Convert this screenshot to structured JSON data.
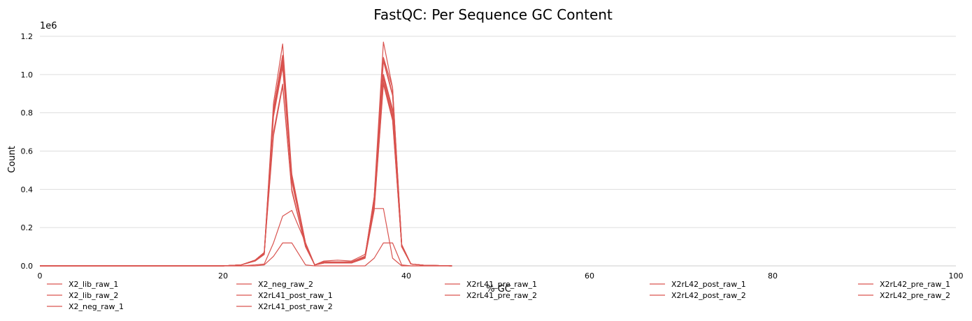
{
  "chart_data": {
    "type": "line",
    "title": "FastQC: Per Sequence GC Content",
    "xlabel": "% GC",
    "ylabel": "Count",
    "y_offset_label": "1e6",
    "xlim": [
      0,
      100
    ],
    "ylim": [
      0,
      1.2
    ],
    "xticks": [
      0,
      20,
      40,
      60,
      80,
      100
    ],
    "yticks": [
      "0.0",
      "0.2",
      "0.4",
      "0.6",
      "0.8",
      "1.0",
      "1.2"
    ],
    "grid": "horizontal",
    "legend_position": "bottom",
    "line_color": "#d9534f",
    "x": [
      0,
      20,
      22,
      23.5,
      24.5,
      25.5,
      26.5,
      27.5,
      29,
      30,
      31,
      32.5,
      34,
      35.5,
      36.5,
      37.5,
      38.5,
      39.5,
      40.5,
      42,
      45
    ],
    "series": [
      {
        "name": "X2_lib_raw_1",
        "values": [
          0,
          0,
          0.005,
          0.03,
          0.07,
          0.85,
          1.16,
          0.48,
          0.12,
          0.005,
          0.02,
          0.02,
          0.02,
          0.05,
          0.36,
          1.17,
          0.93,
          0.11,
          0.01,
          0.003,
          0
        ]
      },
      {
        "name": "X2_lib_raw_2",
        "values": [
          0,
          0,
          0.005,
          0.03,
          0.065,
          0.82,
          1.1,
          0.46,
          0.11,
          0.005,
          0.02,
          0.02,
          0.02,
          0.05,
          0.35,
          1.09,
          0.93,
          0.11,
          0.01,
          0.003,
          0
        ]
      },
      {
        "name": "X2_neg_raw_1",
        "values": [
          0,
          0,
          0,
          0,
          0.005,
          0.05,
          0.12,
          0.12,
          0.005,
          0,
          0,
          0,
          0,
          0,
          0.04,
          0.12,
          0.12,
          0.005,
          0,
          0,
          0
        ]
      },
      {
        "name": "X2_neg_raw_2",
        "values": [
          0,
          0,
          0,
          0.005,
          0.01,
          0.12,
          0.26,
          0.29,
          0.12,
          0.005,
          0.025,
          0.03,
          0.025,
          0.06,
          0.3,
          0.3,
          0.04,
          0,
          0,
          0,
          0
        ]
      },
      {
        "name": "X2rL41_post_raw_1",
        "values": [
          0,
          0,
          0.005,
          0.025,
          0.06,
          0.8,
          1.05,
          0.45,
          0.11,
          0.005,
          0.015,
          0.015,
          0.015,
          0.045,
          0.33,
          1.0,
          0.8,
          0.1,
          0.01,
          0.003,
          0
        ]
      },
      {
        "name": "X2rL41_post_raw_2",
        "values": [
          0,
          0,
          0.005,
          0.025,
          0.06,
          0.78,
          1.04,
          0.44,
          0.11,
          0.005,
          0.015,
          0.015,
          0.015,
          0.045,
          0.32,
          0.98,
          0.78,
          0.1,
          0.01,
          0.003,
          0
        ]
      },
      {
        "name": "X2rL41_pre_raw_1",
        "values": [
          0,
          0,
          0.005,
          0.03,
          0.07,
          0.7,
          0.95,
          0.4,
          0.1,
          0.005,
          0.015,
          0.015,
          0.015,
          0.04,
          0.3,
          0.96,
          0.77,
          0.1,
          0.01,
          0.003,
          0
        ]
      },
      {
        "name": "X2rL41_pre_raw_2",
        "values": [
          0,
          0,
          0.005,
          0.03,
          0.07,
          0.68,
          0.94,
          0.39,
          0.1,
          0.005,
          0.015,
          0.015,
          0.015,
          0.04,
          0.29,
          0.95,
          0.76,
          0.1,
          0.01,
          0.003,
          0
        ]
      },
      {
        "name": "X2rL42_post_raw_1",
        "values": [
          0,
          0,
          0.005,
          0.03,
          0.065,
          0.8,
          1.08,
          0.46,
          0.11,
          0.005,
          0.015,
          0.015,
          0.015,
          0.045,
          0.34,
          1.0,
          0.82,
          0.1,
          0.01,
          0.003,
          0
        ]
      },
      {
        "name": "X2rL42_post_raw_2",
        "values": [
          0,
          0,
          0.005,
          0.03,
          0.065,
          0.79,
          1.07,
          0.45,
          0.11,
          0.005,
          0.015,
          0.015,
          0.015,
          0.045,
          0.33,
          0.99,
          0.81,
          0.1,
          0.01,
          0.003,
          0
        ]
      },
      {
        "name": "X2rL42_pre_raw_1",
        "values": [
          0,
          0,
          0.005,
          0.03,
          0.07,
          0.82,
          1.1,
          0.47,
          0.12,
          0.005,
          0.02,
          0.02,
          0.02,
          0.05,
          0.36,
          1.08,
          0.9,
          0.11,
          0.01,
          0.003,
          0
        ]
      },
      {
        "name": "X2rL42_pre_raw_2",
        "values": [
          0,
          0,
          0.005,
          0.03,
          0.07,
          0.81,
          1.09,
          0.46,
          0.12,
          0.005,
          0.02,
          0.02,
          0.02,
          0.05,
          0.35,
          1.07,
          0.89,
          0.11,
          0.01,
          0.003,
          0
        ]
      }
    ]
  }
}
